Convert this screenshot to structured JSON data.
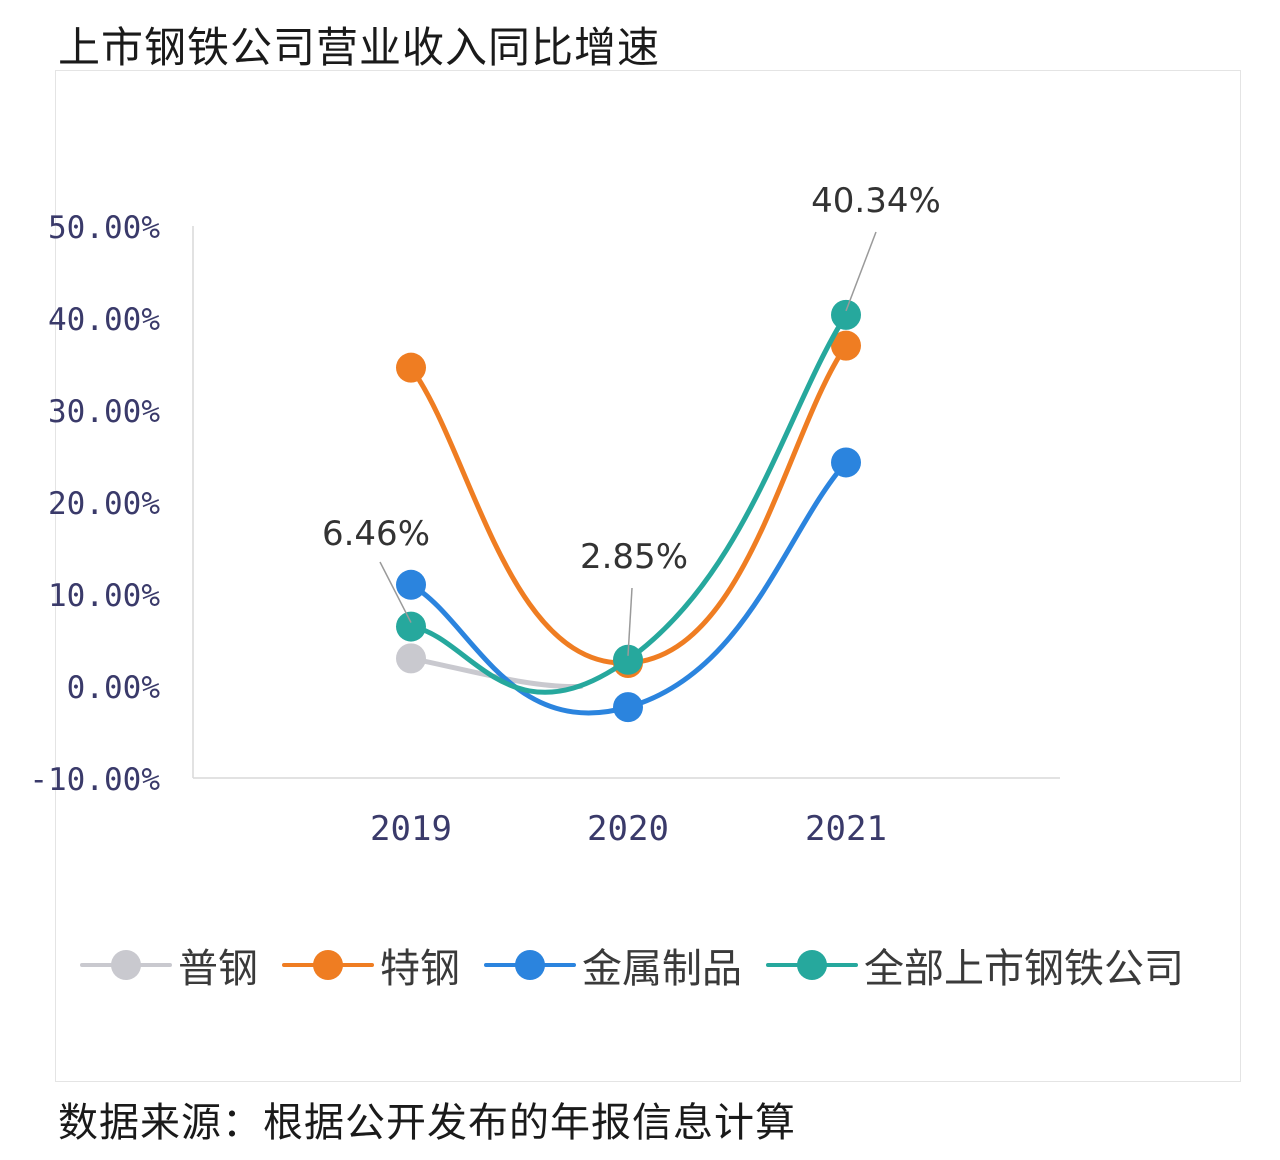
{
  "header": {
    "title": "上市钢铁公司营业收入同比增速"
  },
  "footer": {
    "source": "数据来源：根据公开发布的年报信息计算"
  },
  "chart_data": {
    "type": "line",
    "title": "上市钢铁公司营业收入同比增速",
    "xlabel": "",
    "ylabel": "",
    "categories": [
      "2019",
      "2020",
      "2021"
    ],
    "y_ticks": [
      "-10.00%",
      "0.00%",
      "10.00%",
      "20.00%",
      "30.00%",
      "40.00%",
      "50.00%"
    ],
    "ylim": [
      -10,
      50
    ],
    "grid": false,
    "smooth": true,
    "legend_position": "bottom",
    "series": [
      {
        "name": "普钢",
        "color": "#c9c9cf",
        "values": [
          3.0,
          null,
          null
        ]
      },
      {
        "name": "特钢",
        "color": "#ef7d22",
        "values": [
          34.6,
          2.5,
          37.0
        ]
      },
      {
        "name": "金属制品",
        "color": "#2b84de",
        "values": [
          11.0,
          -2.3,
          24.3
        ]
      },
      {
        "name": "全部上市钢铁公司",
        "color": "#26a89d",
        "values": [
          6.46,
          2.85,
          40.34
        ]
      }
    ],
    "annotations": [
      {
        "text": "6.46%",
        "category": "2019",
        "series": "全部上市钢铁公司"
      },
      {
        "text": "2.85%",
        "category": "2020",
        "series": "全部上市钢铁公司"
      },
      {
        "text": "40.34%",
        "category": "2021",
        "series": "全部上市钢铁公司"
      }
    ]
  }
}
